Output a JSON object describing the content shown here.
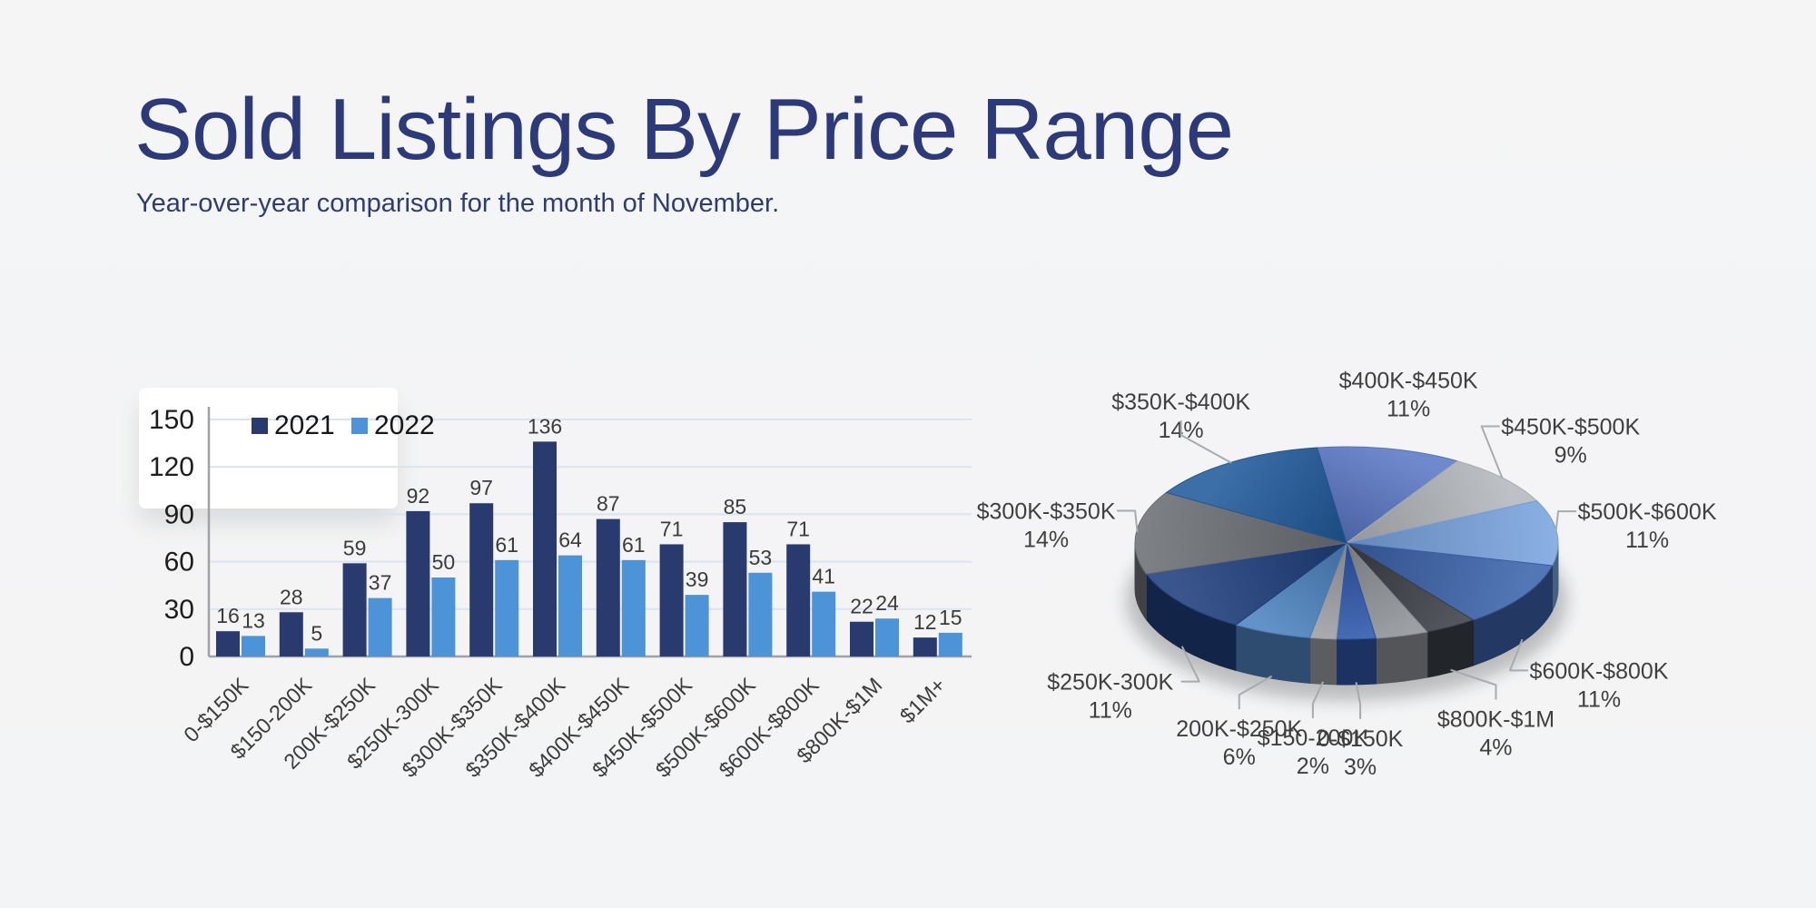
{
  "canvas": {
    "background": "#f4f4f5"
  },
  "header": {
    "title": "Sold Listings By Price Range",
    "subtitle": "Year-over-year comparison for the month of November."
  },
  "chart_data": [
    {
      "type": "bar",
      "title": "Sold Listings By Price Range",
      "categories": [
        "0-$150K",
        "$150-200K",
        "200K-$250K",
        "$250K-300K",
        "$300K-$350K",
        "$350K-$400K",
        "$400K-$450K",
        "$450K-$500K",
        "$500K-$600K",
        "$600K-$800K",
        "$800K-$1M",
        "$1M+"
      ],
      "series": [
        {
          "name": "2021",
          "color": "#293a6e",
          "values": [
            16,
            28,
            59,
            92,
            97,
            136,
            87,
            71,
            85,
            71,
            22,
            12
          ]
        },
        {
          "name": "2022",
          "color": "#4d93d8",
          "values": [
            13,
            5,
            37,
            50,
            61,
            64,
            61,
            39,
            53,
            41,
            24,
            15
          ]
        }
      ],
      "ylim": [
        0,
        150
      ],
      "yticks": [
        0,
        30,
        60,
        90,
        120,
        150
      ],
      "grid": true,
      "grid_color": "#dbe3f0",
      "axis_color": "#9fa1a6",
      "value_label_color": "#3b3b3b",
      "tick_label_color": "#1d1d1d",
      "category_label_color": "#3c3c3c",
      "legend_position": "top-left",
      "value_labels": true
    },
    {
      "type": "pie",
      "style": "3d",
      "start_angle_deg": -98,
      "label_color": "#3f3f3f",
      "leader_color": "#a7aaae",
      "slices": [
        {
          "label": "$400K-$450K",
          "pct": 11,
          "pct_label": "11%",
          "color": "#5b79c6"
        },
        {
          "label": "$450K-$500K",
          "pct": 9,
          "pct_label": "9%",
          "color": "#b4b7bc"
        },
        {
          "label": "$500K-$600K",
          "pct": 11,
          "pct_label": "11%",
          "color": "#7ba5e0"
        },
        {
          "label": "$600K-$800K",
          "pct": 11,
          "pct_label": "11%",
          "color": "#3c63ab"
        },
        {
          "label": "$800K-$1M",
          "pct": 4,
          "pct_label": "4%",
          "color": "#3b3f46"
        },
        {
          "label": "",
          "pct": 4,
          "pct_label": "",
          "color": "#909398",
          "unlabeled": true
        },
        {
          "label": "0-$150K",
          "pct": 3,
          "pct_label": "3%",
          "color": "#2e57ab"
        },
        {
          "label": "$150-200K",
          "pct": 2,
          "pct_label": "2%",
          "color": "#9da0a5"
        },
        {
          "label": "200K-$250K",
          "pct": 6,
          "pct_label": "6%",
          "color": "#4d83c0"
        },
        {
          "label": "$250K-300K",
          "pct": 11,
          "pct_label": "11%",
          "color": "#1f3f7e"
        },
        {
          "label": "$300K-$350K",
          "pct": 14,
          "pct_label": "14%",
          "color": "#6e7177"
        },
        {
          "label": "$350K-$400K",
          "pct": 14,
          "pct_label": "14%",
          "color": "#215a9c"
        }
      ]
    }
  ]
}
